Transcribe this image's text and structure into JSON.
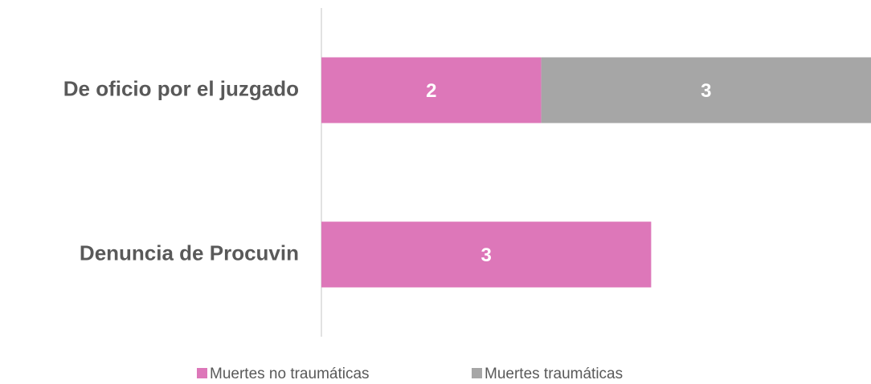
{
  "chart_data": {
    "type": "stacked-barh",
    "categories": [
      "De oficio por el juzgado",
      "Denuncia de Procuvin"
    ],
    "series": [
      {
        "name": "Muertes no traumáticas",
        "color": "#dd77b9",
        "values": [
          2,
          3
        ]
      },
      {
        "name": "Muertes traumáticas",
        "color": "#a6a6a6",
        "values": [
          3,
          null
        ]
      }
    ],
    "xlim": [
      0,
      5
    ]
  }
}
